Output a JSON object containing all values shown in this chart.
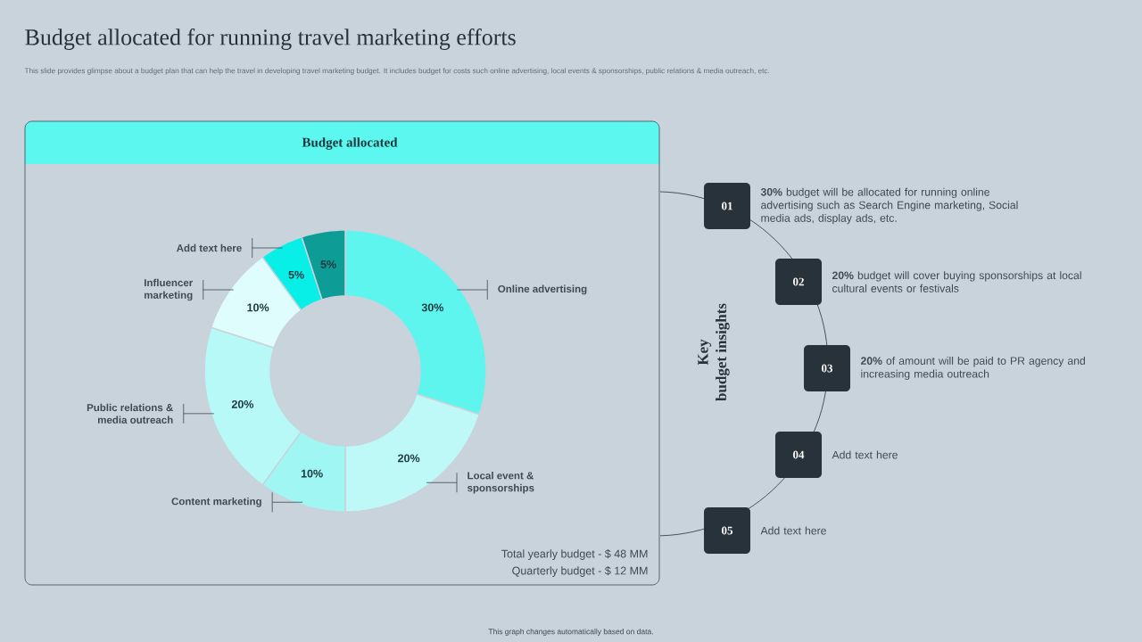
{
  "chart_data": {
    "type": "donut",
    "title": "Budget allocated for running travel marketing efforts",
    "subtitle": "This slide provides glimpse about a budget plan that can help the travel in developing travel marketing budget. It includes budget for costs such online advertising, local events & sponsorships, public relations & media outreach, etc.",
    "categories": [
      "Online advertising",
      "Local event & sponsorships",
      "Content marketing",
      "Public relations & media outreach",
      "Influencer marketing",
      "Add text here",
      null
    ],
    "values": [
      30,
      20,
      10,
      20,
      10,
      5,
      5
    ],
    "value_labels": [
      "30%",
      "20%",
      "10%",
      "20%",
      "10%",
      "5%",
      "5%"
    ],
    "colors": [
      "#5ef5ef",
      "#bff9f7",
      "#9ff6f3",
      "#b6f9f6",
      "#e0fdfd",
      "#08efe8",
      "#0e9c97"
    ],
    "annotations": [
      "Budget allocated",
      "Total yearly budget - $ 48 MM",
      "Quarterly budget - $ 12 MM",
      "Key",
      "budget insights",
      "01",
      "02",
      "03",
      "04",
      "05",
      "**30%** budget will be allocated for running online advertising such as Search Engine marketing, Social media ads, display ads, etc.",
      "**20%** budget will cover buying sponsorships at local cultural events or festivals",
      "**20%** of amount will be paid to PR agency and increasing media outreach",
      "Add text here",
      "Add text here",
      "This graph changes automatically based on data."
    ]
  }
}
